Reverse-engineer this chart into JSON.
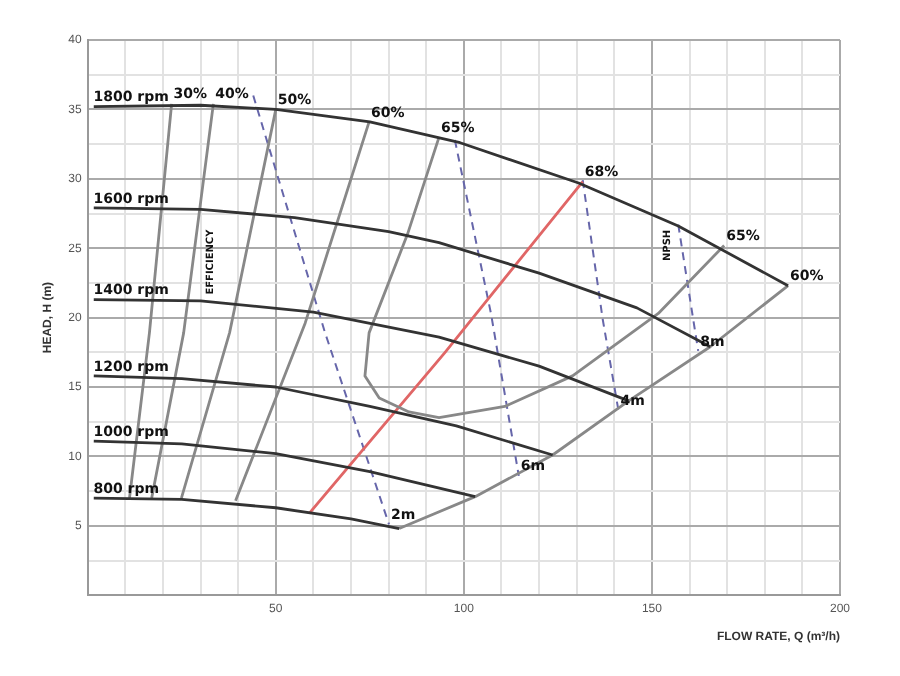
{
  "chart_data": {
    "type": "line",
    "xlabel": "FLOW RATE, Q (m³/h)",
    "ylabel": "HEAD, H (m)",
    "xlim": [
      0,
      200
    ],
    "ylim": [
      0,
      40
    ],
    "xticks": [
      {
        "value": 0,
        "label": null
      },
      {
        "value": 10,
        "label": null
      },
      {
        "value": 20,
        "label": null
      },
      {
        "value": 30,
        "label": null
      },
      {
        "value": 40,
        "label": null
      },
      50,
      {
        "value": 60,
        "label": null
      },
      {
        "value": 70,
        "label": null
      },
      {
        "value": 80,
        "label": null
      },
      {
        "value": 90,
        "label": null
      },
      100,
      {
        "value": 110,
        "label": null
      },
      {
        "value": 120,
        "label": null
      },
      {
        "value": 130,
        "label": null
      },
      {
        "value": 140,
        "label": null
      },
      150,
      {
        "value": 160,
        "label": null
      },
      {
        "value": 170,
        "label": null
      },
      {
        "value": 180,
        "label": null
      },
      {
        "value": 190,
        "label": null
      },
      200
    ],
    "yticks": [
      {
        "value": 0,
        "label": null
      },
      {
        "value": 2.5,
        "label": null
      },
      5,
      {
        "value": 7.5,
        "label": null
      },
      10,
      {
        "value": 12.5,
        "label": null
      },
      15,
      {
        "value": 17.5,
        "label": null
      },
      20,
      {
        "value": 22.5,
        "label": null
      },
      25,
      {
        "value": 27.5,
        "label": null
      },
      30,
      {
        "value": 32.5,
        "label": null
      },
      35,
      {
        "value": 37.5,
        "label": null
      },
      40
    ],
    "grid": true,
    "legend": false,
    "marker": "none",
    "series": [
      {
        "color": "#333333",
        "x": [
          1.6,
          30,
          50,
          75,
          99,
          130.5,
          157,
          186.2
        ],
        "values": [
          35.2,
          35.3,
          35.0,
          34.1,
          32.6,
          29.7,
          26.6,
          22.3
        ]
      },
      {
        "color": "#333333",
        "x": [
          1.6,
          30,
          55,
          80,
          93.4,
          120,
          146,
          165.5
        ],
        "values": [
          27.9,
          27.8,
          27.2,
          26.2,
          25.4,
          23.2,
          20.7,
          17.9
        ]
      },
      {
        "color": "#333333",
        "x": [
          1.6,
          30,
          60,
          93.4,
          120,
          143.8
        ],
        "values": [
          21.3,
          21.2,
          20.4,
          18.6,
          16.5,
          14.0
        ]
      },
      {
        "color": "#333333",
        "x": [
          1.6,
          25,
          50,
          75,
          98,
          123.6
        ],
        "values": [
          15.8,
          15.6,
          15.0,
          13.6,
          12.2,
          10.1
        ]
      },
      {
        "color": "#333333",
        "x": [
          1.6,
          25,
          50,
          75,
          103
        ],
        "values": [
          11.1,
          10.9,
          10.2,
          8.9,
          7.1
        ]
      },
      {
        "color": "#333333",
        "x": [
          1.6,
          25,
          50,
          70,
          82.8
        ],
        "values": [
          7.0,
          6.9,
          6.3,
          5.5,
          4.8
        ]
      },
      {
        "color": "#888888",
        "x": [
          22.3,
          16.4,
          11.1
        ],
        "values": [
          35.4,
          18.9,
          7.0
        ]
      },
      {
        "color": "#888888",
        "x": [
          33.4,
          25.5,
          17
        ],
        "values": [
          35.4,
          18.9,
          7.0
        ]
      },
      {
        "color": "#888888",
        "x": [
          50,
          37.7,
          24.9
        ],
        "values": [
          35,
          18.9,
          7.0
        ]
      },
      {
        "color": "#888888",
        "x": [
          74.8,
          57.8,
          39.3
        ],
        "values": [
          34.1,
          19.6,
          6.8
        ]
      },
      {
        "color": "#888888",
        "x": [
          93.4,
          85,
          74.8,
          73.7,
          77.5,
          85.4,
          93.4,
          110.9,
          128.9,
          151.7,
          169.2
        ],
        "values": [
          33.0,
          26,
          18.9,
          15.8,
          14.2,
          13.2,
          12.8,
          13.6,
          15.8,
          20.3,
          25.2
        ]
      },
      {
        "color": "#888888",
        "x": [
          82.8,
          103,
          123.6,
          143.8,
          165.5,
          186.2
        ],
        "values": [
          4.8,
          7.1,
          10.1,
          14.0,
          17.9,
          22.3
        ]
      },
      {
        "color": "#e06666",
        "x": [
          58.9,
          95,
          131.6
        ],
        "values": [
          5.9,
          17.5,
          29.8
        ]
      },
      {
        "color": "#6666aa",
        "line_style": "dashed",
        "x": [
          44.0,
          63.1,
          80.1
        ],
        "values": [
          36.0,
          18.9,
          5.1
        ]
      },
      {
        "color": "#6666aa",
        "line_style": "dashed",
        "x": [
          97.6,
          107.2,
          114.6
        ],
        "values": [
          32.8,
          20.3,
          8.6
        ]
      },
      {
        "color": "#6666aa",
        "line_style": "dashed",
        "x": [
          131.6,
          136.9,
          141.1
        ],
        "values": [
          29.9,
          19.9,
          13.3
        ]
      },
      {
        "color": "#6666aa",
        "line_style": "dashed",
        "x": [
          157,
          162.3
        ],
        "values": [
          26.7,
          17.6
        ]
      }
    ],
    "annotations": [
      {
        "text": "1800 rpm",
        "x": 1,
        "y": 35.2
      },
      {
        "text": "1600 rpm",
        "x": 1,
        "y": 27.9
      },
      {
        "text": "1400 rpm",
        "x": 1,
        "y": 21.3
      },
      {
        "text": "1200 rpm",
        "x": 1,
        "y": 15.8
      },
      {
        "text": "1000 rpm",
        "x": 1,
        "y": 11.1
      },
      {
        "text": "800 rpm",
        "x": 1,
        "y": 7.0
      },
      {
        "text": "30%",
        "x": 22.3,
        "y": 35.4
      },
      {
        "text": "40%",
        "x": 33.4,
        "y": 35.4
      },
      {
        "text": "50%",
        "x": 50,
        "y": 35
      },
      {
        "text": "60%",
        "x": 74.8,
        "y": 34.1
      },
      {
        "text": "65%",
        "x": 93.4,
        "y": 33.0
      },
      {
        "text": "68%",
        "x": 131.6,
        "y": 29.8
      },
      {
        "text": "65%",
        "x": 169.2,
        "y": 25.2
      },
      {
        "text": "60%",
        "x": 186.2,
        "y": 22.3
      },
      {
        "text": "2m",
        "x": 80.1,
        "y": 5.1
      },
      {
        "text": "6m",
        "x": 114.6,
        "y": 8.6
      },
      {
        "text": "4m",
        "x": 141.1,
        "y": 13.3
      },
      {
        "text": "8m",
        "x": 162.3,
        "y": 17.6
      },
      "EFFICIENCY",
      "NPSH"
    ]
  }
}
